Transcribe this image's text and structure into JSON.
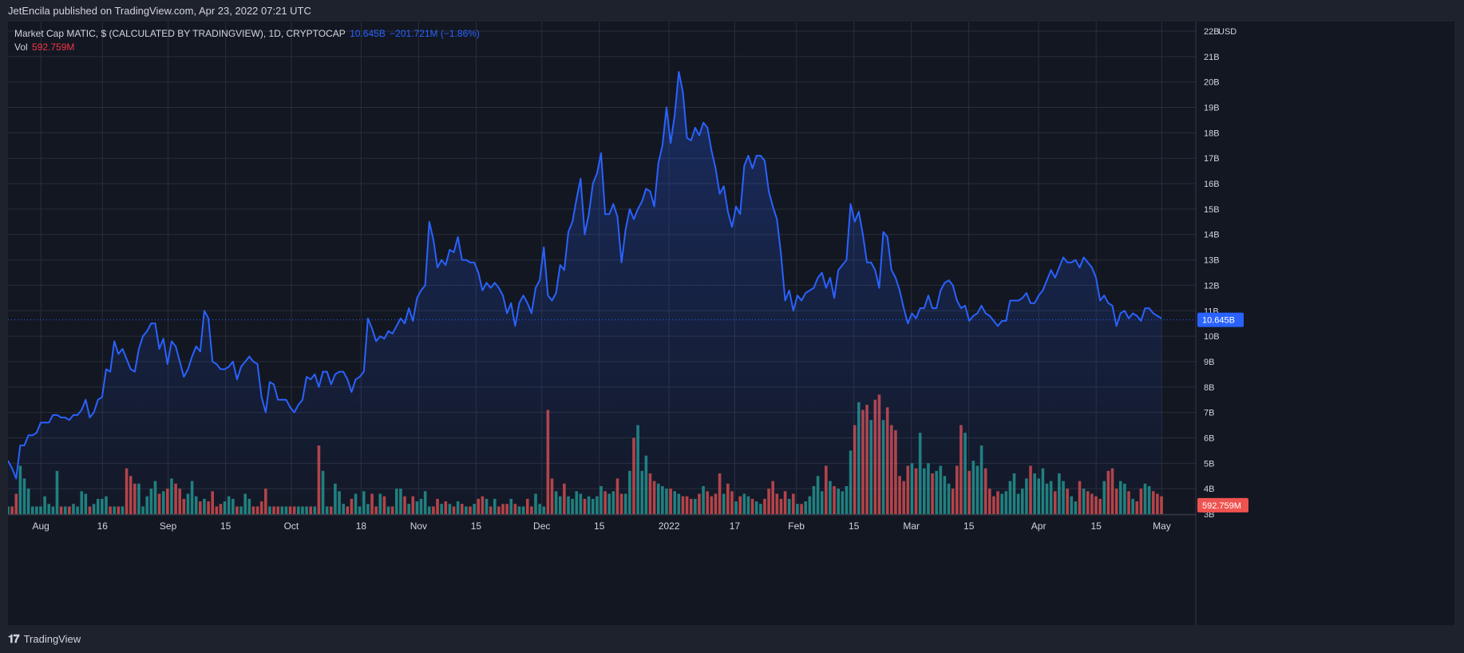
{
  "header": {
    "published": "JetEncila published on TradingView.com, Apr 23, 2022 07:21 UTC"
  },
  "legend": {
    "title": "Market Cap MATIC, $ (CALCULATED BY TRADINGVIEW), 1D, CRYPTOCAP",
    "last_value": "10.645B",
    "change": "−201.721M (−1.86%)",
    "vol_label": "Vol",
    "vol_value": "592.759M"
  },
  "price_axis": {
    "currency": "USD",
    "last_label": "10.645B",
    "vol_label": "592.759M"
  },
  "footer": {
    "brand": "TradingView"
  },
  "colors": {
    "background": "#131722",
    "line": "#2962ff",
    "volume_up": "#26a69a",
    "volume_down": "#ef5350",
    "grid": "#2a2e39",
    "text": "#d1d4dc"
  },
  "chart_data": {
    "type": "area",
    "x_range": [
      "2022-07-25",
      "2022-05-06"
    ],
    "x_labels": [
      "Aug",
      "16",
      "Sep",
      "15",
      "Oct",
      "18",
      "Nov",
      "15",
      "Dec",
      "15",
      "2022",
      "17",
      "Feb",
      "15",
      "Mar",
      "15",
      "Apr",
      "15",
      "May"
    ],
    "y_ticks": [
      "3B",
      "4B",
      "5B",
      "6B",
      "7B",
      "8B",
      "9B",
      "10B",
      "11B",
      "12B",
      "13B",
      "14B",
      "15B",
      "16B",
      "17B",
      "18B",
      "19B",
      "20B",
      "21B",
      "22B"
    ],
    "ylim": [
      3,
      22
    ],
    "y_unit": "B",
    "grid": true,
    "series": [
      {
        "type": "line",
        "values": [
          5.1,
          4.8,
          4.4,
          5.7,
          5.7,
          6.1,
          6.1,
          6.2,
          6.6,
          6.6,
          6.6,
          6.9,
          6.9,
          6.8,
          6.8,
          6.7,
          6.9,
          6.9,
          7.1,
          7.5,
          6.8,
          7.0,
          7.5,
          7.6,
          8.7,
          8.6,
          9.8,
          9.3,
          9.5,
          9.1,
          8.7,
          8.6,
          9.5,
          10.0,
          10.2,
          10.5,
          10.5,
          9.5,
          9.9,
          8.9,
          9.8,
          9.6,
          9.0,
          8.4,
          8.7,
          9.2,
          9.6,
          9.4,
          11.0,
          10.7,
          9.0,
          8.9,
          8.7,
          8.7,
          8.8,
          9.0,
          8.3,
          8.8,
          9.0,
          9.2,
          9.0,
          8.9,
          7.6,
          7.0,
          8.2,
          8.1,
          7.5,
          7.5,
          7.5,
          7.2,
          7.0,
          7.3,
          7.5,
          8.4,
          8.3,
          8.5,
          8.0,
          8.6,
          8.6,
          8.1,
          8.5,
          8.6,
          8.6,
          8.3,
          7.8,
          8.3,
          8.4,
          8.6,
          10.7,
          10.3,
          9.8,
          10.0,
          9.9,
          10.2,
          10.1,
          10.4,
          10.7,
          10.5,
          11.1,
          10.6,
          11.5,
          11.8,
          12.0,
          14.5,
          13.8,
          12.7,
          13.0,
          12.8,
          13.4,
          13.3,
          13.9,
          13.0,
          13.0,
          12.9,
          12.9,
          12.5,
          11.8,
          12.1,
          11.9,
          12.1,
          11.9,
          11.6,
          10.9,
          11.3,
          10.4,
          11.3,
          11.6,
          11.3,
          10.9,
          11.9,
          12.2,
          13.5,
          11.6,
          11.4,
          11.7,
          12.8,
          12.6,
          14.1,
          14.5,
          15.4,
          16.2,
          14.0,
          14.8,
          16.0,
          16.4,
          17.2,
          14.8,
          14.8,
          15.2,
          14.7,
          12.9,
          14.2,
          15.0,
          14.6,
          15.0,
          15.3,
          15.8,
          15.7,
          15.1,
          16.8,
          17.5,
          19.0,
          17.6,
          18.7,
          20.4,
          19.6,
          17.8,
          17.7,
          18.2,
          17.9,
          18.4,
          18.2,
          17.3,
          16.6,
          15.6,
          15.9,
          14.9,
          14.3,
          15.1,
          14.8,
          16.7,
          17.1,
          16.6,
          17.1,
          17.1,
          16.9,
          15.7,
          15.1,
          14.6,
          13.2,
          11.4,
          11.8,
          11.0,
          11.6,
          11.4,
          11.7,
          11.8,
          11.9,
          12.3,
          12.5,
          11.9,
          12.3,
          11.5,
          12.6,
          12.8,
          13.0,
          15.2,
          14.5,
          14.9,
          14.0,
          12.9,
          12.9,
          12.6,
          11.9,
          14.1,
          13.9,
          12.6,
          12.3,
          11.8,
          11.1,
          10.5,
          10.9,
          10.7,
          11.1,
          11.1,
          11.6,
          11.1,
          11.1,
          11.8,
          12.1,
          12.2,
          12.0,
          11.4,
          11.1,
          11.2,
          10.6,
          10.8,
          10.9,
          11.2,
          10.9,
          10.8,
          10.6,
          10.4,
          10.6,
          10.6,
          11.4,
          11.4,
          11.4,
          11.5,
          11.7,
          11.3,
          11.3,
          11.6,
          11.8,
          12.2,
          12.6,
          12.3,
          12.7,
          13.1,
          12.9,
          12.9,
          13.0,
          12.7,
          13.1,
          12.9,
          12.7,
          12.3,
          11.4,
          11.6,
          11.3,
          11.2,
          10.4,
          10.9,
          11.0,
          10.7,
          10.9,
          10.8,
          10.6,
          11.1,
          11.1,
          10.9,
          10.8,
          10.7
        ]
      },
      {
        "type": "volume",
        "values": [
          3.3,
          3.3,
          3.8,
          4.9,
          4.4,
          4.0,
          3.3,
          3.3,
          3.3,
          3.7,
          3.4,
          3.3,
          4.7,
          3.3,
          3.3,
          3.3,
          3.4,
          3.3,
          3.9,
          3.8,
          3.3,
          3.4,
          3.6,
          3.6,
          3.7,
          3.3,
          3.3,
          3.3,
          3.3,
          4.8,
          4.5,
          4.2,
          4.2,
          3.3,
          3.7,
          4.0,
          4.3,
          3.8,
          3.9,
          4.0,
          4.4,
          4.2,
          4.0,
          3.6,
          3.8,
          4.3,
          3.7,
          3.5,
          3.6,
          3.5,
          3.9,
          3.3,
          3.4,
          3.5,
          3.7,
          3.6,
          3.3,
          3.3,
          3.8,
          3.6,
          3.3,
          3.3,
          3.5,
          4.0,
          3.3,
          3.3,
          3.3,
          3.3,
          3.3,
          3.3,
          3.3,
          3.3,
          3.3,
          3.3,
          3.3,
          3.3,
          5.7,
          4.7,
          3.3,
          3.3,
          4.2,
          3.9,
          3.4,
          3.3,
          3.6,
          3.8,
          3.3,
          3.9,
          3.4,
          3.8,
          3.3,
          3.8,
          3.7,
          3.3,
          3.3,
          4.0,
          4.0,
          3.7,
          3.4,
          3.7,
          3.5,
          3.6,
          3.9,
          3.3,
          3.3,
          3.6,
          3.4,
          3.5,
          3.4,
          3.3,
          3.5,
          3.4,
          3.3,
          3.3,
          3.4,
          3.6,
          3.7,
          3.6,
          3.3,
          3.6,
          3.3,
          3.4,
          3.4,
          3.6,
          3.4,
          3.3,
          3.3,
          3.6,
          3.3,
          3.8,
          3.4,
          3.3,
          7.1,
          4.4,
          3.9,
          3.7,
          4.2,
          3.7,
          3.6,
          3.9,
          3.8,
          3.6,
          3.7,
          3.6,
          3.7,
          4.1,
          3.9,
          3.8,
          3.9,
          4.4,
          3.8,
          3.8,
          4.7,
          6.0,
          6.5,
          4.7,
          5.3,
          4.6,
          4.3,
          4.2,
          4.1,
          4.0,
          4.0,
          3.9,
          3.8,
          3.7,
          3.7,
          3.6,
          3.6,
          3.8,
          4.1,
          3.9,
          3.7,
          3.8,
          4.6,
          3.8,
          4.2,
          3.9,
          3.5,
          3.7,
          3.8,
          3.7,
          3.6,
          3.5,
          3.4,
          3.6,
          4.0,
          4.3,
          3.8,
          3.6,
          3.9,
          3.6,
          3.8,
          3.4,
          3.4,
          3.5,
          3.7,
          4.1,
          4.5,
          3.9,
          4.9,
          4.3,
          4.1,
          4.0,
          3.9,
          4.1,
          5.5,
          6.5,
          7.4,
          7.1,
          7.3,
          6.7,
          7.5,
          7.7,
          6.7,
          7.2,
          6.5,
          6.3,
          4.5,
          4.3,
          4.9,
          5.0,
          4.8,
          6.2,
          4.8,
          5.0,
          4.6,
          4.7,
          4.9,
          4.5,
          4.2,
          4.0,
          4.9,
          6.5,
          6.2,
          4.7,
          5.1,
          4.9,
          5.7,
          4.8,
          4.0,
          3.7,
          3.9,
          3.8,
          3.9,
          4.3,
          4.6,
          3.8,
          4.0,
          4.4,
          4.9,
          4.6,
          4.4,
          4.8,
          4.2,
          4.3,
          3.9,
          4.6,
          4.3,
          4.0,
          3.7,
          3.5,
          4.3,
          4.0,
          3.9,
          3.8,
          3.7,
          3.6,
          4.3,
          4.7,
          4.8,
          4.0,
          4.3,
          4.2,
          3.9,
          3.6,
          3.5,
          4.0,
          4.2,
          4.1,
          3.9,
          3.8,
          3.7,
          3.7,
          3.7,
          3.6,
          3.6,
          3.7,
          3.9,
          3.8,
          3.8,
          3.6,
          3.8,
          3.8,
          3.5,
          3.8,
          3.8,
          3.5,
          3.6,
          3.5,
          3.7,
          3.4,
          3.6,
          3.7,
          3.7,
          3.6,
          3.9,
          3.8,
          3.6,
          3.8,
          3.7,
          3.7,
          3.6,
          3.5,
          3.5,
          3.7,
          3.7,
          3.7,
          3.6,
          3.7,
          3.7,
          3.6,
          3.6,
          3.6,
          3.5,
          3.4,
          3.7,
          3.7,
          3.7,
          3.7,
          3.7,
          3.7,
          3.7,
          3.7,
          3.7,
          3.7,
          3.6,
          3.6,
          3.6,
          3.5,
          3.7,
          3.6,
          3.3,
          3.3,
          3.4,
          3.4,
          3.3,
          3.4,
          3.4,
          3.4,
          3.4,
          3.4,
          3.4,
          3.4,
          3.4,
          3.4,
          3.4,
          3.4,
          3.4,
          3.4,
          3.4,
          3.4,
          3.4,
          3.3
        ]
      }
    ]
  }
}
